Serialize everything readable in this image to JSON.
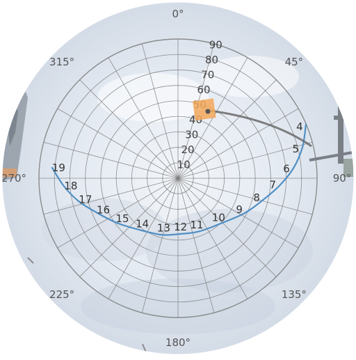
{
  "sky_view": {
    "azimuth_labels": [
      {
        "text": "0°",
        "deg": 0
      },
      {
        "text": "45°",
        "deg": 45
      },
      {
        "text": "90°",
        "deg": 90
      },
      {
        "text": "135°",
        "deg": 135
      },
      {
        "text": "180°",
        "deg": 180
      },
      {
        "text": "225°",
        "deg": 225
      },
      {
        "text": "270°",
        "deg": 270
      },
      {
        "text": "315°",
        "deg": 315
      }
    ],
    "ring_labels": [
      "10",
      "20",
      "30",
      "40",
      "50",
      "60",
      "70",
      "80",
      "90"
    ],
    "sun_path_hour_labels": [
      {
        "text": "4",
        "azimuth": 67,
        "altitude": 0
      },
      {
        "text": "5",
        "azimuth": 76,
        "altitude": 7
      },
      {
        "text": "6",
        "azimuth": 85,
        "altitude": 15
      },
      {
        "text": "7",
        "azimuth": 94,
        "altitude": 24
      },
      {
        "text": "8",
        "azimuth": 104,
        "altitude": 33
      },
      {
        "text": "9",
        "azimuth": 117,
        "altitude": 41
      },
      {
        "text": "10",
        "azimuth": 134,
        "altitude": 49
      },
      {
        "text": "11",
        "azimuth": 158,
        "altitude": 53
      },
      {
        "text": "12",
        "azimuth": 177,
        "altitude": 54
      },
      {
        "text": "13",
        "azimuth": 196,
        "altitude": 52
      },
      {
        "text": "14",
        "azimuth": 218,
        "altitude": 48
      },
      {
        "text": "15",
        "azimuth": 234,
        "altitude": 41
      },
      {
        "text": "16",
        "azimuth": 247,
        "altitude": 33
      },
      {
        "text": "17",
        "azimuth": 257,
        "altitude": 24
      },
      {
        "text": "18",
        "azimuth": 266,
        "altitude": 16
      },
      {
        "text": "19",
        "azimuth": 275,
        "altitude": 8
      }
    ],
    "colors": {
      "sky": "#e6ecf4",
      "grid": "#7d7d7d",
      "sun_path": "#4f8fc4",
      "marker": "#f3a85a",
      "marker_line": "#6a6a6a",
      "frame": "#ffffff"
    }
  }
}
